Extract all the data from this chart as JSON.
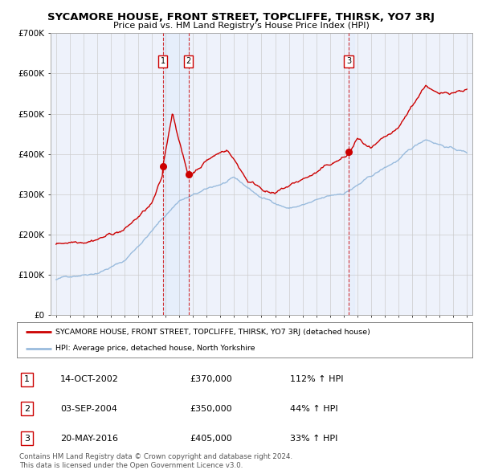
{
  "title": "SYCAMORE HOUSE, FRONT STREET, TOPCLIFFE, THIRSK, YO7 3RJ",
  "subtitle": "Price paid vs. HM Land Registry's House Price Index (HPI)",
  "background_color": "#eef2fb",
  "red_line_color": "#cc0000",
  "blue_line_color": "#99bbdd",
  "grid_color": "#cccccc",
  "sale_points": [
    {
      "label": "1",
      "year": 2002.79,
      "value": 370000,
      "date": "14-OCT-2002",
      "price": "£370,000",
      "pct": "112% ↑ HPI"
    },
    {
      "label": "2",
      "year": 2004.67,
      "value": 350000,
      "date": "03-SEP-2004",
      "price": "£350,000",
      "pct": "44% ↑ HPI"
    },
    {
      "label": "3",
      "year": 2016.38,
      "value": 405000,
      "date": "20-MAY-2016",
      "price": "£405,000",
      "pct": "33% ↑ HPI"
    }
  ],
  "ylim": [
    0,
    700000
  ],
  "yticks": [
    0,
    100000,
    200000,
    300000,
    400000,
    500000,
    600000,
    700000
  ],
  "ytick_labels": [
    "£0",
    "£100K",
    "£200K",
    "£300K",
    "£400K",
    "£500K",
    "£600K",
    "£700K"
  ],
  "xlim_start": 1994.6,
  "xlim_end": 2025.4,
  "legend_red_label": "SYCAMORE HOUSE, FRONT STREET, TOPCLIFFE, THIRSK, YO7 3RJ (detached house)",
  "legend_blue_label": "HPI: Average price, detached house, North Yorkshire",
  "footer1": "Contains HM Land Registry data © Crown copyright and database right 2024.",
  "footer2": "This data is licensed under the Open Government Licence v3.0."
}
